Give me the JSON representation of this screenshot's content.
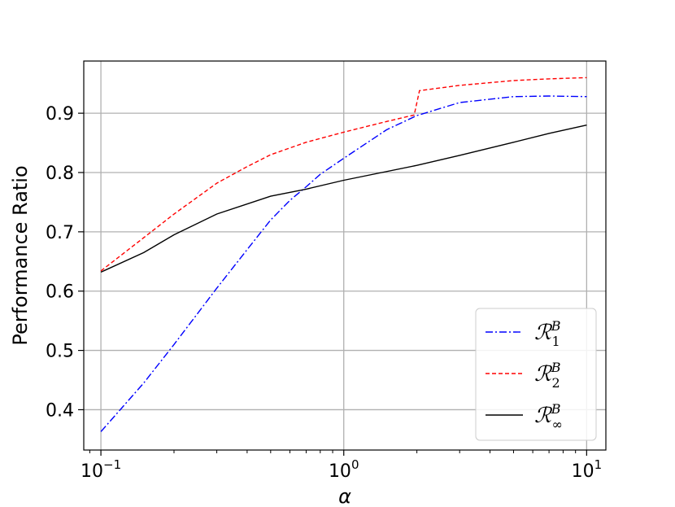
{
  "chart_data": {
    "type": "line",
    "xscale": "log",
    "xlabel": "α",
    "ylabel": "Performance Ratio",
    "xlim": [
      0.085,
      12
    ],
    "ylim": [
      0.332,
      0.988
    ],
    "grid": true,
    "legend_position": "lower-right",
    "x_ticks": [
      {
        "value": 0.1,
        "base": "10",
        "exp": "−1"
      },
      {
        "value": 1,
        "base": "10",
        "exp": "0"
      },
      {
        "value": 10,
        "base": "10",
        "exp": "1"
      }
    ],
    "y_ticks": [
      {
        "value": 0.4,
        "label": "0.4"
      },
      {
        "value": 0.5,
        "label": "0.5"
      },
      {
        "value": 0.6,
        "label": "0.6"
      },
      {
        "value": 0.7,
        "label": "0.7"
      },
      {
        "value": 0.8,
        "label": "0.8"
      },
      {
        "value": 0.9,
        "label": "0.9"
      }
    ],
    "series": [
      {
        "name": "R1B",
        "legend_main": "ℛ",
        "legend_sup": "B",
        "legend_sub": "1",
        "color": "#0000ff",
        "dash": "dashdot",
        "points": [
          [
            0.1,
            0.363
          ],
          [
            0.15,
            0.445
          ],
          [
            0.2,
            0.51
          ],
          [
            0.3,
            0.605
          ],
          [
            0.4,
            0.67
          ],
          [
            0.5,
            0.72
          ],
          [
            0.6,
            0.753
          ],
          [
            0.7,
            0.776
          ],
          [
            0.8,
            0.797
          ],
          [
            1.0,
            0.824
          ],
          [
            1.5,
            0.872
          ],
          [
            2.0,
            0.896
          ],
          [
            3.0,
            0.918
          ],
          [
            5.0,
            0.928
          ],
          [
            7.0,
            0.929
          ],
          [
            10.0,
            0.928
          ]
        ]
      },
      {
        "name": "R2B",
        "legend_main": "ℛ",
        "legend_sup": "B",
        "legend_sub": "2",
        "color": "#ff0000",
        "dash": "dashed",
        "points": [
          [
            0.1,
            0.634
          ],
          [
            0.15,
            0.69
          ],
          [
            0.2,
            0.73
          ],
          [
            0.3,
            0.782
          ],
          [
            0.4,
            0.81
          ],
          [
            0.5,
            0.83
          ],
          [
            0.7,
            0.851
          ],
          [
            1.0,
            0.868
          ],
          [
            1.5,
            0.886
          ],
          [
            1.95,
            0.897
          ],
          [
            2.05,
            0.938
          ],
          [
            3.0,
            0.947
          ],
          [
            5.0,
            0.955
          ],
          [
            7.0,
            0.958
          ],
          [
            10.0,
            0.96
          ]
        ]
      },
      {
        "name": "RinfB",
        "legend_main": "ℛ",
        "legend_sup": "B",
        "legend_sub": "∞",
        "color": "#000000",
        "dash": "solid",
        "points": [
          [
            0.1,
            0.632
          ],
          [
            0.15,
            0.665
          ],
          [
            0.2,
            0.695
          ],
          [
            0.3,
            0.73
          ],
          [
            0.5,
            0.76
          ],
          [
            0.7,
            0.772
          ],
          [
            1.0,
            0.787
          ],
          [
            2.0,
            0.812
          ],
          [
            3.0,
            0.829
          ],
          [
            5.0,
            0.851
          ],
          [
            7.0,
            0.866
          ],
          [
            10.0,
            0.88
          ]
        ]
      }
    ]
  }
}
